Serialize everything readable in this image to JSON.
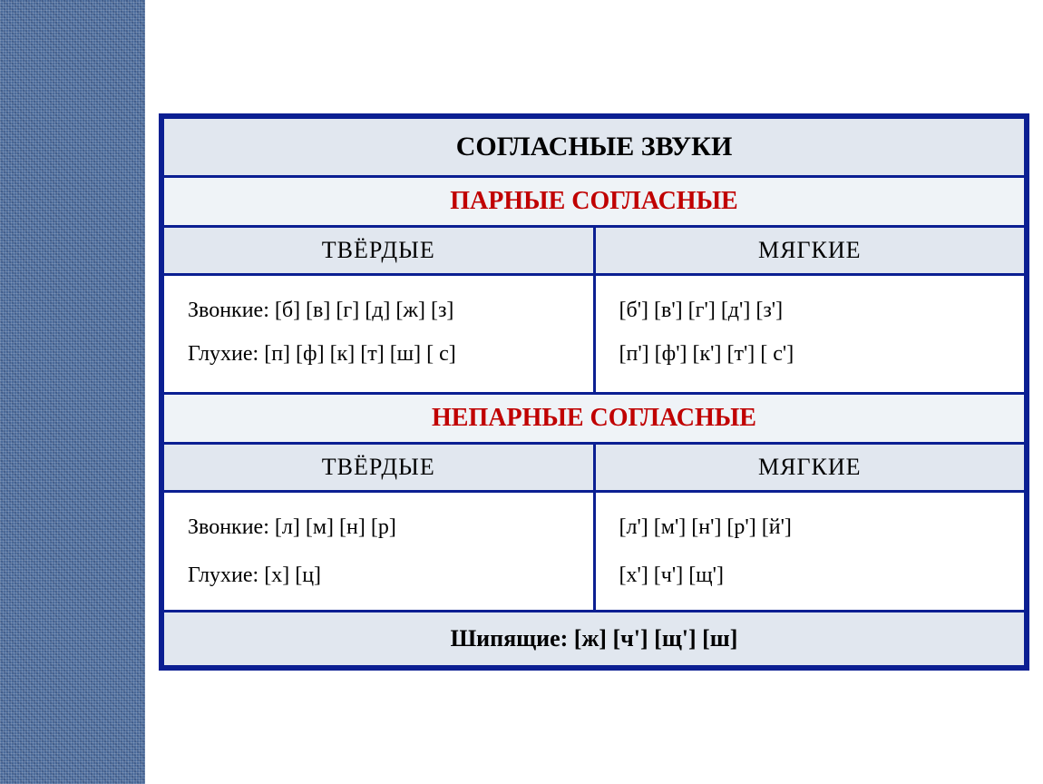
{
  "colors": {
    "border": "#0b1f92",
    "bg_title": "#e1e7ef",
    "bg_section": "#eff3f7",
    "bg_subhead": "#e1e7ef",
    "bg_data": "#ffffff",
    "bg_footer": "#e1e7ef",
    "text_title": "#000000",
    "text_section": "#c00000",
    "text_body": "#000000",
    "texture_bg": "#4a6a9a",
    "page_bg": "#ffffff"
  },
  "fonts": {
    "title_size_pt": 30,
    "section_size_pt": 28,
    "subhead_size_pt": 26,
    "body_size_pt": 24,
    "footer_size_pt": 26
  },
  "title": "СОГЛАСНЫЕ ЗВУКИ",
  "paired": {
    "heading": "ПАРНЫЕ СОГЛАСНЫЕ",
    "cols": {
      "hard": "ТВЁРДЫЕ",
      "soft": "МЯГКИЕ"
    },
    "hard_cell": "Звонкие: [б]  [в]  [г]  [д]  [ж]   [з]\nГлухие:   [п]  [ф]  [к]  [т]  [ш]  [ с]",
    "soft_cell": "[б']   [в']   [г']   [д']   [з']\n[п']   [ф']   [к']   [т']   [ с']"
  },
  "unpaired": {
    "heading": "НЕПАРНЫЕ СОГЛАСНЫЕ",
    "cols": {
      "hard": "ТВЁРДЫЕ",
      "soft": "МЯГКИЕ"
    },
    "hard_cell": "Звонкие: [л] [м] [н] [р]\nГлухие:   [х] [ц]",
    "soft_cell": "[л'] [м'] [н'] [р'] [й']\n[х'] [ч'] [щ']"
  },
  "footer": "Шипящие: [ж] [ч'] [щ'] [ш]"
}
